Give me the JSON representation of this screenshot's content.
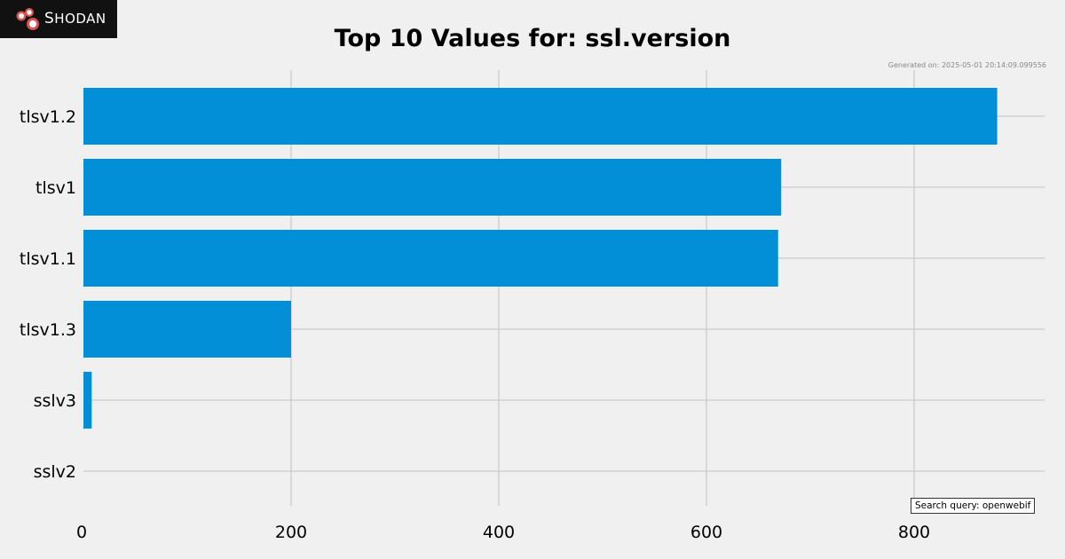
{
  "logo": {
    "text": "Shodan",
    "icon": "shodan-logo-icon",
    "background": "#111111",
    "accent": "#d9534f"
  },
  "generated_text": "Generated on: 2025-05-01 20:14:09.099556",
  "search_query_text": "Search query: openwebif",
  "chart_data": {
    "type": "bar",
    "orientation": "horizontal",
    "title": "Top 10 Values for: ssl.version",
    "categories": [
      "tlsv1.2",
      "tlsv1",
      "tlsv1.1",
      "tlsv1.3",
      "sslv3",
      "sslv2"
    ],
    "values": [
      880,
      672,
      669,
      200,
      8,
      0
    ],
    "xlim": [
      0,
      922
    ],
    "xticks": [
      0,
      200,
      400,
      600,
      800
    ],
    "grid": true,
    "bar_color": "#038fd7",
    "background": "#f0f0f0"
  }
}
